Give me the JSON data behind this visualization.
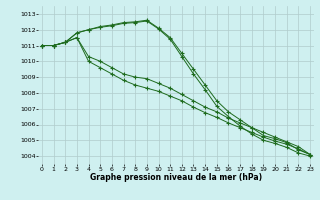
{
  "xlabel": "Graphe pression niveau de la mer (hPa)",
  "background_color": "#cff0f0",
  "grid_color": "#b0cccc",
  "line_color": "#1e6b1e",
  "x_ticks": [
    0,
    1,
    2,
    3,
    4,
    5,
    6,
    7,
    8,
    9,
    10,
    11,
    12,
    13,
    14,
    15,
    16,
    17,
    18,
    19,
    20,
    21,
    22,
    23
  ],
  "ylim": [
    1003.5,
    1013.5
  ],
  "xlim": [
    -0.3,
    23.3
  ],
  "yticks": [
    1004,
    1005,
    1006,
    1007,
    1008,
    1009,
    1010,
    1011,
    1012,
    1013
  ],
  "series": [
    [
      1011.0,
      1011.0,
      1011.2,
      1011.8,
      1012.0,
      1012.2,
      1012.3,
      1012.45,
      1012.5,
      1012.6,
      1012.1,
      1011.5,
      1010.5,
      1009.5,
      1008.5,
      1007.5,
      1006.8,
      1006.3,
      1005.8,
      1005.3,
      1005.1,
      1004.85,
      1004.4,
      1004.1
    ],
    [
      1011.0,
      1011.0,
      1011.2,
      1011.8,
      1012.0,
      1012.15,
      1012.25,
      1012.4,
      1012.45,
      1012.55,
      1012.05,
      1011.4,
      1010.3,
      1009.2,
      1008.2,
      1007.15,
      1006.5,
      1005.9,
      1005.4,
      1005.0,
      1004.8,
      1004.55,
      1004.2,
      1004.0
    ],
    [
      1011.0,
      1011.0,
      1011.2,
      1011.5,
      1010.3,
      1010.0,
      1009.6,
      1009.2,
      1009.0,
      1008.9,
      1008.6,
      1008.3,
      1007.9,
      1007.5,
      1007.1,
      1006.8,
      1006.4,
      1006.1,
      1005.8,
      1005.5,
      1005.2,
      1004.9,
      1004.6,
      1004.1
    ],
    [
      1011.0,
      1011.0,
      1011.2,
      1011.5,
      1010.0,
      1009.6,
      1009.2,
      1008.8,
      1008.5,
      1008.3,
      1008.1,
      1007.8,
      1007.5,
      1007.1,
      1006.75,
      1006.45,
      1006.1,
      1005.8,
      1005.5,
      1005.2,
      1004.95,
      1004.75,
      1004.45,
      1004.1
    ]
  ]
}
